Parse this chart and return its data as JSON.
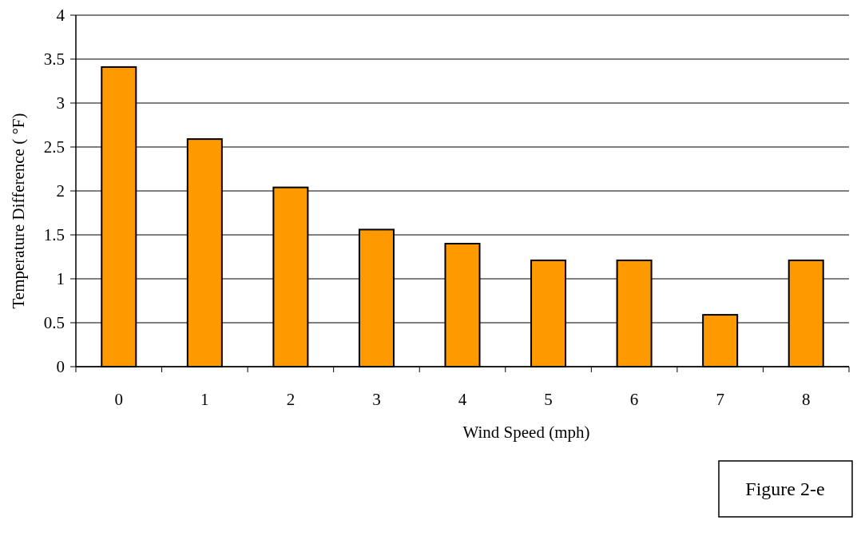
{
  "chart_data": {
    "type": "bar",
    "categories": [
      "0",
      "1",
      "2",
      "3",
      "4",
      "5",
      "6",
      "7",
      "8"
    ],
    "values": [
      3.41,
      2.59,
      2.04,
      1.56,
      1.4,
      1.21,
      1.21,
      0.59,
      1.21
    ],
    "color": "#ff9900",
    "xlabel": "Wind Speed (mph)",
    "ylabel": "Temperature Difference ( °F)",
    "ylim": [
      0,
      4
    ],
    "yticks": [
      0,
      0.5,
      1,
      1.5,
      2,
      2.5,
      3,
      3.5,
      4
    ],
    "grid": "y",
    "annotations": [
      "Figure 2-e"
    ]
  }
}
